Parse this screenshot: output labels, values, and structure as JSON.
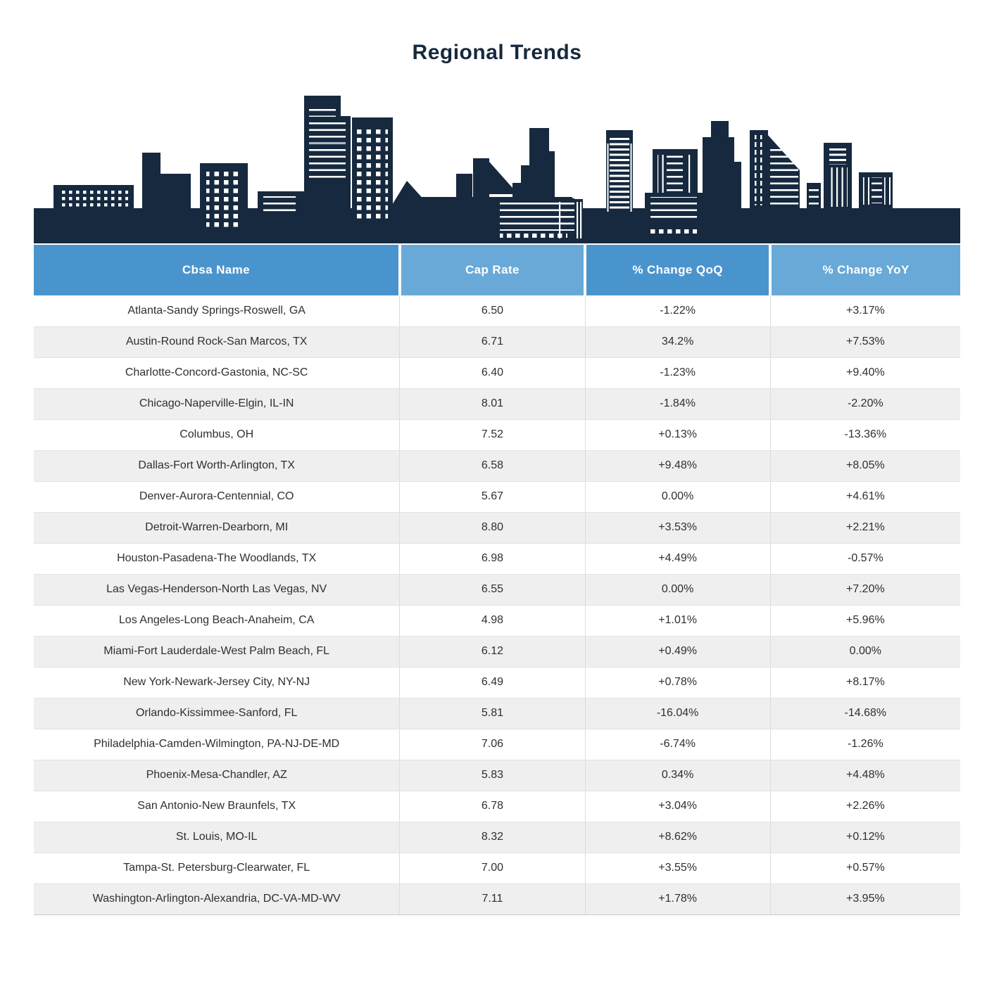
{
  "title": "Regional Trends",
  "colors": {
    "navy": "#16293e",
    "header_blue_dark": "#4a94ce",
    "header_blue_light": "#68a9d8",
    "row_stripe": "#efefef",
    "body_text": "#2f2f2f",
    "window_white": "#ffffff",
    "window_accent": "#a9bacf"
  },
  "skyline": {
    "description": "city-skyline-silhouette",
    "silhouette_color": "#16293e",
    "window_color": "#ffffff"
  },
  "table": {
    "header": {
      "columns": [
        {
          "label": "Cbsa Name",
          "bg": "#4a94ce"
        },
        {
          "label": "Cap Rate",
          "bg": "#68a9d8"
        },
        {
          "label": "% Change QoQ",
          "bg": "#4a94ce"
        },
        {
          "label": "% Change YoY",
          "bg": "#68a9d8"
        }
      ]
    }
  },
  "chart_data": {
    "type": "table",
    "title": "Regional Trends",
    "columns": [
      "Cbsa Name",
      "Cap Rate",
      "% Change QoQ",
      "% Change YoY"
    ],
    "rows": [
      [
        "Atlanta-Sandy Springs-Roswell, GA",
        "6.50",
        "-1.22%",
        "+3.17%"
      ],
      [
        "Austin-Round Rock-San Marcos, TX",
        "6.71",
        "34.2%",
        "+7.53%"
      ],
      [
        "Charlotte-Concord-Gastonia, NC-SC",
        "6.40",
        "-1.23%",
        "+9.40%"
      ],
      [
        "Chicago-Naperville-Elgin, IL-IN",
        "8.01",
        "-1.84%",
        "-2.20%"
      ],
      [
        "Columbus, OH",
        "7.52",
        "+0.13%",
        "-13.36%"
      ],
      [
        "Dallas-Fort Worth-Arlington, TX",
        "6.58",
        "+9.48%",
        "+8.05%"
      ],
      [
        "Denver-Aurora-Centennial, CO",
        "5.67",
        "0.00%",
        "+4.61%"
      ],
      [
        "Detroit-Warren-Dearborn, MI",
        "8.80",
        "+3.53%",
        "+2.21%"
      ],
      [
        "Houston-Pasadena-The Woodlands, TX",
        "6.98",
        "+4.49%",
        "-0.57%"
      ],
      [
        "Las Vegas-Henderson-North Las Vegas, NV",
        "6.55",
        "0.00%",
        "+7.20%"
      ],
      [
        "Los Angeles-Long Beach-Anaheim, CA",
        "4.98",
        "+1.01%",
        "+5.96%"
      ],
      [
        "Miami-Fort Lauderdale-West Palm Beach, FL",
        "6.12",
        "+0.49%",
        "0.00%"
      ],
      [
        "New York-Newark-Jersey City, NY-NJ",
        "6.49",
        "+0.78%",
        "+8.17%"
      ],
      [
        "Orlando-Kissimmee-Sanford, FL",
        "5.81",
        "-16.04%",
        "-14.68%"
      ],
      [
        "Philadelphia-Camden-Wilmington, PA-NJ-DE-MD",
        "7.06",
        "-6.74%",
        "-1.26%"
      ],
      [
        "Phoenix-Mesa-Chandler, AZ",
        "5.83",
        "0.34%",
        "+4.48%"
      ],
      [
        "San Antonio-New Braunfels, TX",
        "6.78",
        "+3.04%",
        "+2.26%"
      ],
      [
        "St. Louis, MO-IL",
        "8.32",
        "+8.62%",
        "+0.12%"
      ],
      [
        "Tampa-St. Petersburg-Clearwater, FL",
        "7.00",
        "+3.55%",
        "+0.57%"
      ],
      [
        "Washington-Arlington-Alexandria, DC-VA-MD-WV",
        "7.11",
        "+1.78%",
        "+3.95%"
      ]
    ]
  }
}
